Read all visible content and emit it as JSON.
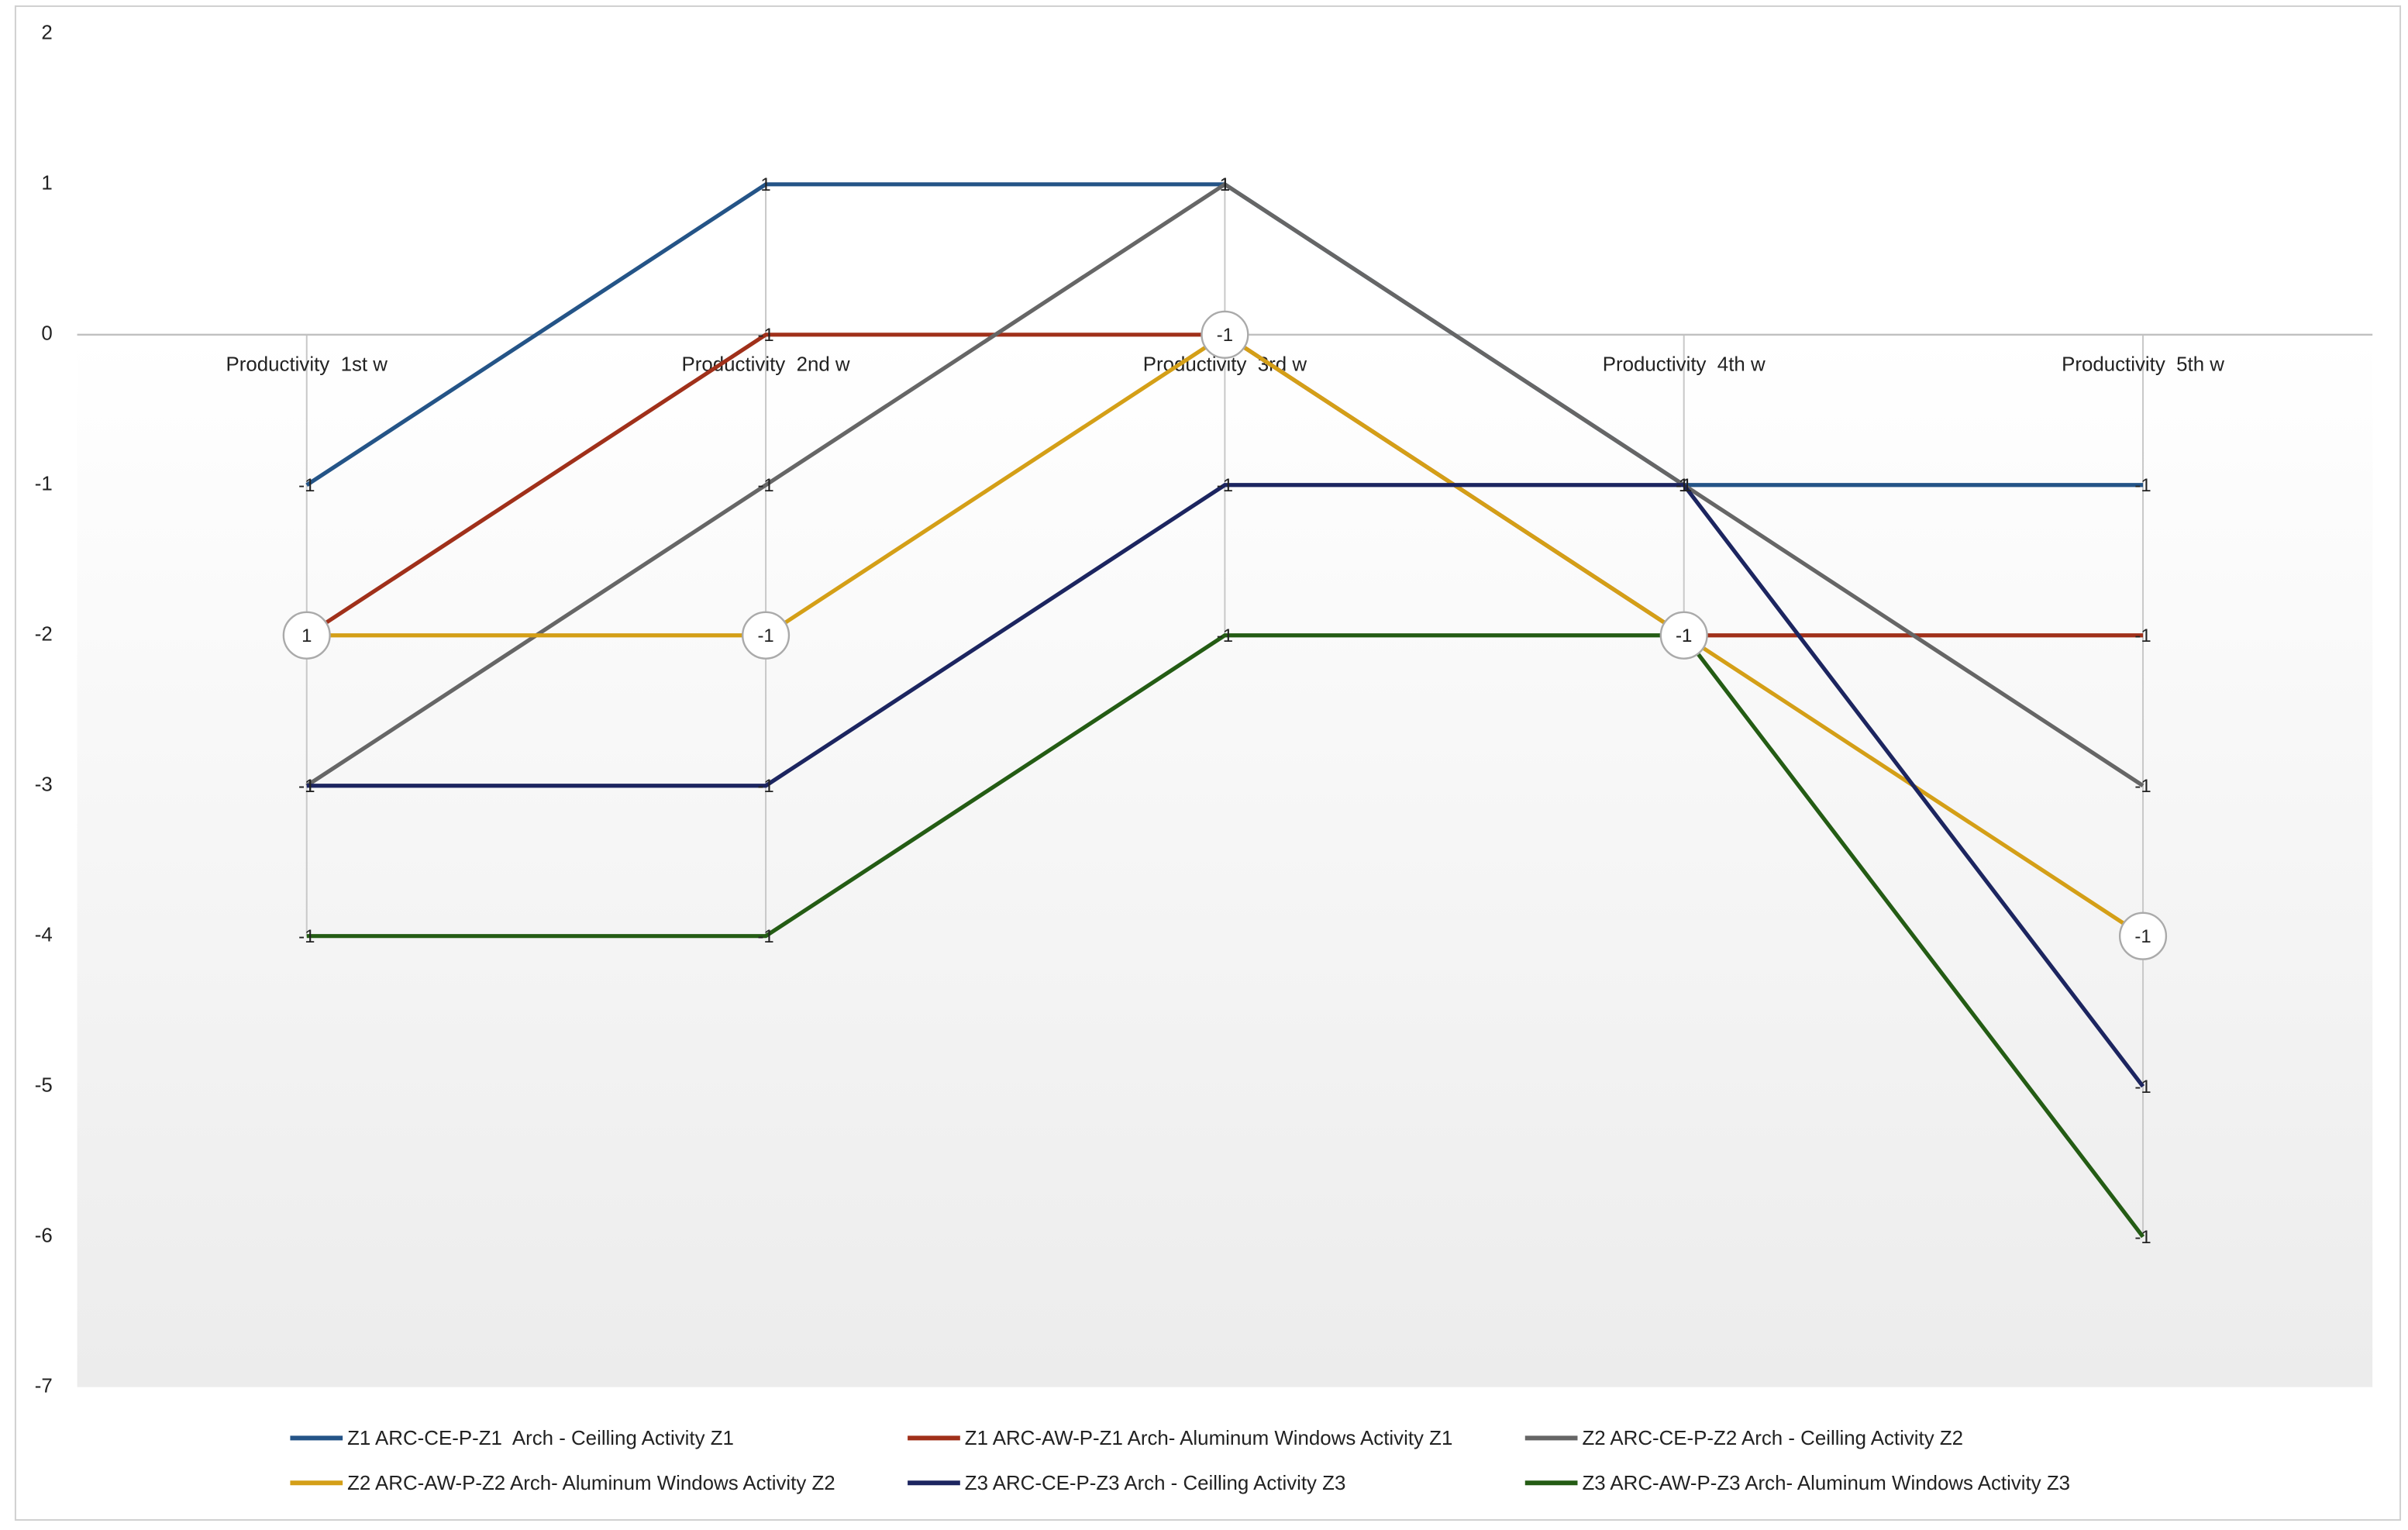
{
  "chart_data": {
    "type": "line",
    "stacked": true,
    "categories": [
      "Productivity  1st w",
      "Productivity  2nd w",
      "Productivity  3rd w",
      "Productivity  4th w",
      "Productivity  5th w"
    ],
    "series": [
      {
        "name": "Z1 ARC-CE-P-Z1  Arch - Ceilling Activity Z1",
        "color": "#245487",
        "values": [
          -1,
          1,
          1,
          -1,
          -1
        ]
      },
      {
        "name": "Z1 ARC-AW-P-Z1 Arch- Aluminum Windows Activity Z1",
        "color": "#a0301a",
        "values": [
          -1,
          -1,
          -1,
          -1,
          -1
        ]
      },
      {
        "name": "Z2 ARC-CE-P-Z2 Arch - Ceilling Activity Z2",
        "color": "#666666",
        "values": [
          -1,
          -1,
          1,
          1,
          -1
        ]
      },
      {
        "name": "Z2 ARC-AW-P-Z2 Arch- Aluminum Windows Activity Z2",
        "color": "#d49f17",
        "values": [
          1,
          -1,
          -1,
          -1,
          -1
        ]
      },
      {
        "name": "Z3 ARC-CE-P-Z3 Arch - Ceilling Activity Z3",
        "color": "#1c2560",
        "values": [
          -1,
          -1,
          -1,
          1,
          -1
        ]
      },
      {
        "name": "Z3 ARC-AW-P-Z3 Arch- Aluminum Windows Activity Z3",
        "color": "#245c14",
        "values": [
          -1,
          -1,
          -1,
          -1,
          -1
        ]
      }
    ],
    "ylim": [
      -7,
      2
    ],
    "yticks": [
      -7,
      -6,
      -5,
      -4,
      -3,
      -2,
      -1,
      0,
      1,
      2
    ],
    "legend": "bottom"
  }
}
